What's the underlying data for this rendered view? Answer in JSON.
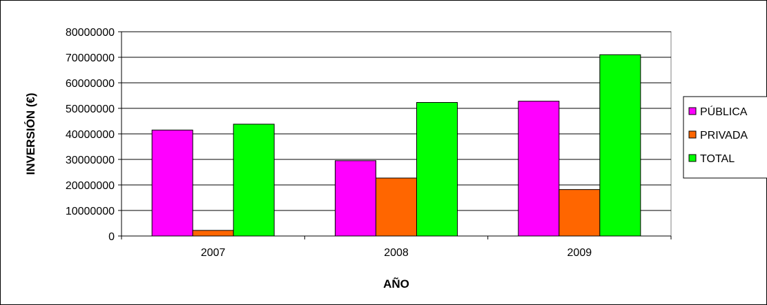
{
  "chart_data": {
    "type": "bar",
    "title": "",
    "xlabel": "AÑO",
    "ylabel": "INVERSIÓN (€)",
    "categories": [
      "2007",
      "2008",
      "2009"
    ],
    "ylim": [
      0,
      80000000
    ],
    "yticks": [
      "0",
      "10000000",
      "20000000",
      "30000000",
      "40000000",
      "50000000",
      "60000000",
      "70000000",
      "80000000"
    ],
    "grid": true,
    "legend_position": "right",
    "series": [
      {
        "name": "PÚBLICA",
        "color": "#ff00ff",
        "values": [
          41500000,
          29500000,
          52800000
        ]
      },
      {
        "name": "PRIVADA",
        "color": "#ff6600",
        "values": [
          2200000,
          22700000,
          18200000
        ]
      },
      {
        "name": "TOTAL",
        "color": "#00ff00",
        "values": [
          43800000,
          52300000,
          71000000
        ]
      }
    ],
    "plot_background": "#ffffff",
    "bar_outline": "#000000"
  }
}
